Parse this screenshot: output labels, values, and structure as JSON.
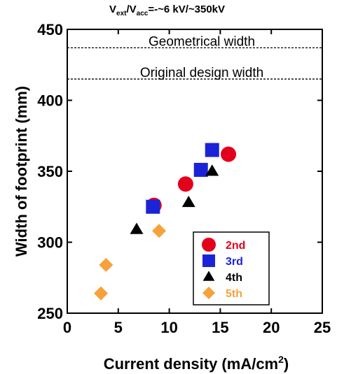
{
  "chart_data": {
    "type": "scatter",
    "title_parts": {
      "v1": "V",
      "v1_sub": "ext",
      "slash": "/V",
      "v2_sub": "acc",
      "rest": "=-~6 kV/~350kV"
    },
    "xlabel": "Current density  (mA/cm",
    "xlabel_sup": "2",
    "xlabel_end": ")",
    "ylabel": "Width of footprint  (mm)",
    "xlim": [
      0,
      25
    ],
    "ylim": [
      250,
      450
    ],
    "x_ticks": [
      "0",
      "5",
      "10",
      "15",
      "20",
      "25"
    ],
    "y_ticks": [
      "250",
      "300",
      "350",
      "400",
      "450"
    ],
    "annotations": [
      {
        "label": "Geometrical width",
        "y": 437
      },
      {
        "label": "Original design width",
        "y": 415
      }
    ],
    "series": [
      {
        "name": "2nd",
        "marker": "circle",
        "color": "#e3001b",
        "points": [
          [
            8.5,
            326
          ],
          [
            11.6,
            341
          ],
          [
            15.8,
            362
          ]
        ]
      },
      {
        "name": "3rd",
        "marker": "square",
        "color": "#1a24d6",
        "points": [
          [
            8.4,
            325
          ],
          [
            13.1,
            351
          ],
          [
            14.2,
            365
          ]
        ]
      },
      {
        "name": "4th",
        "marker": "triangle",
        "color": "#000000",
        "points": [
          [
            6.8,
            309
          ],
          [
            11.9,
            328
          ],
          [
            14.2,
            350
          ]
        ]
      },
      {
        "name": "5th",
        "marker": "diamond",
        "color": "#f7a13c",
        "points": [
          [
            3.3,
            264
          ],
          [
            3.8,
            284
          ],
          [
            9.0,
            308
          ]
        ]
      }
    ]
  }
}
